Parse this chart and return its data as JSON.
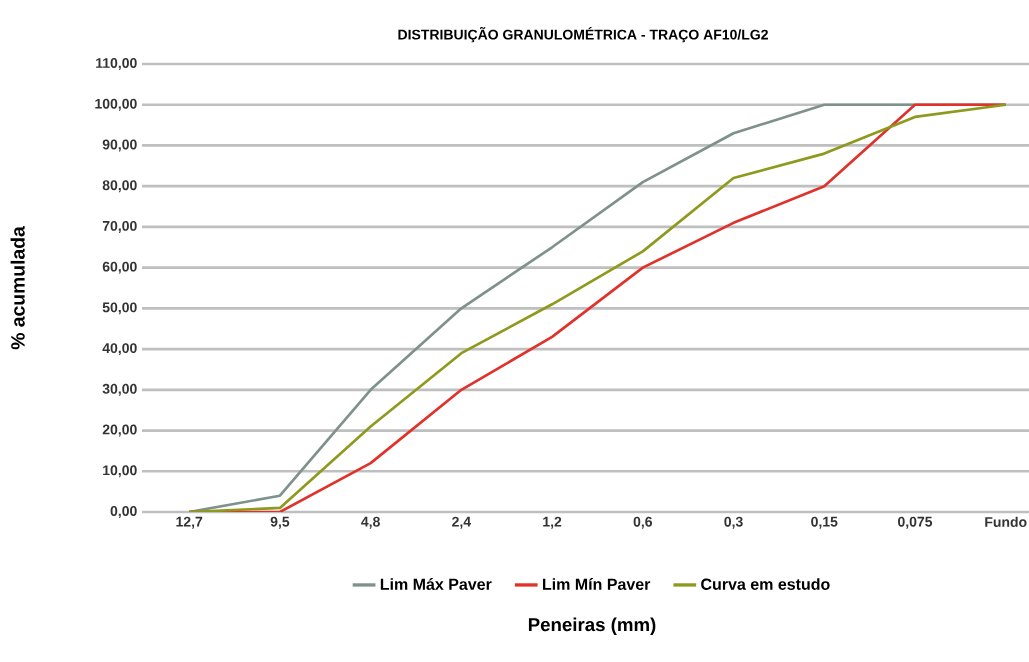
{
  "chart_data": {
    "type": "line",
    "title": "DISTRIBUIÇÃO GRANULOMÉTRICA - TRAÇO AF10/LG2",
    "xlabel": "Peneiras (mm)",
    "ylabel": "% acumulada",
    "categories": [
      "12,7",
      "9,5",
      "4,8",
      "2,4",
      "1,2",
      "0,6",
      "0,3",
      "0,15",
      "0,075",
      "Fundo"
    ],
    "series": [
      {
        "name": "Lim Máx Paver",
        "color": "#7f918c",
        "values": [
          0,
          4,
          30,
          50,
          65,
          81,
          93,
          100,
          100,
          100
        ]
      },
      {
        "name": "Lim Mín Paver",
        "color": "#e0312b",
        "values": [
          0,
          0,
          12,
          30,
          43,
          60,
          71,
          80,
          100,
          100
        ]
      },
      {
        "name": "Curva em estudo",
        "color": "#8e9a1e",
        "values": [
          0,
          1,
          21,
          39,
          51,
          64,
          82,
          88,
          97,
          100
        ]
      }
    ],
    "ylim": [
      0,
      110
    ],
    "yticks": [
      {
        "value": 0,
        "label": "0,00"
      },
      {
        "value": 10,
        "label": "10,00"
      },
      {
        "value": 20,
        "label": "20,00"
      },
      {
        "value": 30,
        "label": "30,00"
      },
      {
        "value": 40,
        "label": "40,00"
      },
      {
        "value": 50,
        "label": "50,00"
      },
      {
        "value": 60,
        "label": "60,00"
      },
      {
        "value": 70,
        "label": "70,00"
      },
      {
        "value": 80,
        "label": "80,00"
      },
      {
        "value": 90,
        "label": "90,00"
      },
      {
        "value": 100,
        "label": "100,00"
      },
      {
        "value": 110,
        "label": "110,00"
      }
    ],
    "grid": "y",
    "legend": "bottom",
    "marker": "none",
    "line_style": "solid"
  }
}
